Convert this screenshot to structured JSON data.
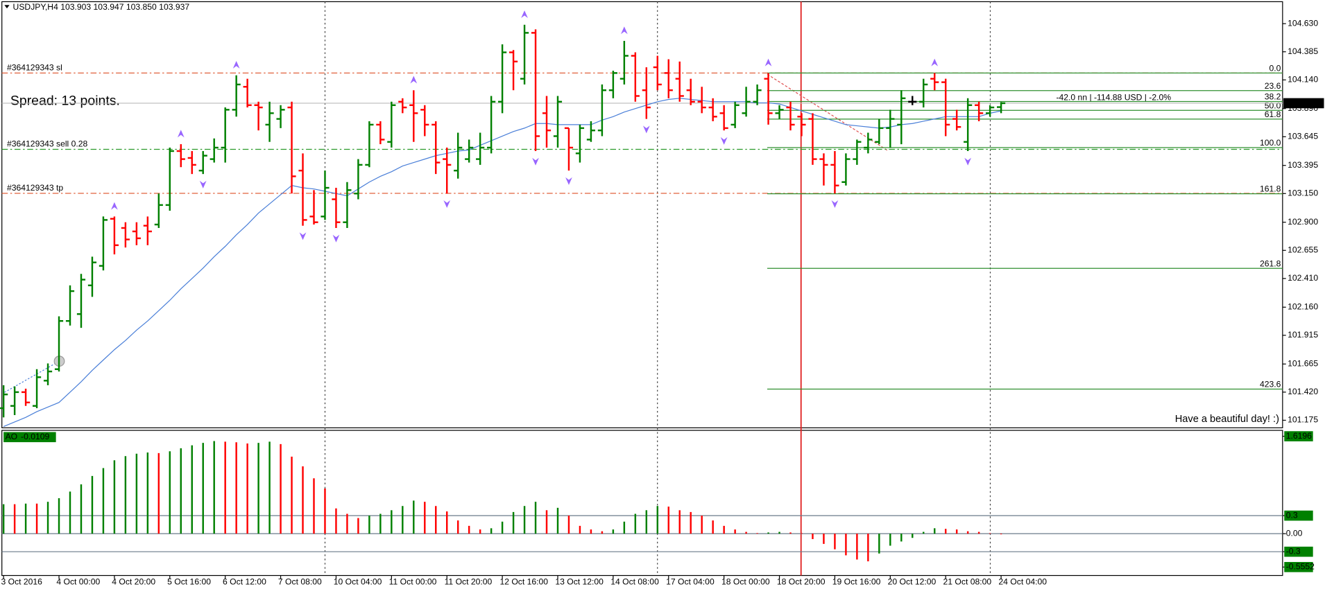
{
  "chart_data": {
    "type": "ohlc",
    "header": "USDJPY,H4  103.903 103.947 103.850 103.937",
    "spread_text": "Spread: 13 points.",
    "greeting": "Have a beautiful day! :)",
    "profit_text": "-42.0 nn | -114.88 USD | -2.0%",
    "up_color": "#008000",
    "down_color": "#ff0000",
    "doji_color": "#000000",
    "ylim": [
      101.109,
      104.814
    ],
    "yticks": [
      {
        "value": 104.63,
        "label": "104.630"
      },
      104.385,
      {
        "value": 104.14,
        "label": "104.140"
      },
      {
        "value": 103.89,
        "label": "103.890"
      },
      103.645,
      103.395,
      {
        "value": 103.15,
        "label": "103.150"
      },
      {
        "value": 102.9,
        "label": "102.900"
      },
      102.655,
      {
        "value": 102.41,
        "label": "102.410"
      },
      {
        "value": 102.16,
        "label": "102.160"
      },
      101.915,
      101.665,
      {
        "value": 101.42,
        "label": "101.420"
      },
      101.175
    ],
    "categories": [
      "3 Oct 2016",
      null,
      null,
      null,
      null,
      "4 Oct 00:00",
      null,
      null,
      null,
      null,
      "4 Oct 20:00",
      null,
      null,
      null,
      null,
      "5 Oct 16:00",
      null,
      null,
      null,
      null,
      "6 Oct 12:00",
      null,
      null,
      null,
      null,
      "7 Oct 08:00",
      null,
      null,
      null,
      null,
      "10 Oct 04:00",
      null,
      null,
      null,
      null,
      "11 Oct 00:00",
      null,
      null,
      null,
      null,
      "11 Oct 20:00",
      null,
      null,
      null,
      null,
      "12 Oct 16:00",
      null,
      null,
      null,
      null,
      "13 Oct 12:00",
      null,
      null,
      null,
      null,
      "14 Oct 08:00",
      null,
      null,
      null,
      null,
      "17 Oct 04:00",
      null,
      null,
      null,
      null,
      "18 Oct 00:00",
      null,
      null,
      null,
      null,
      "18 Oct 20:00",
      null,
      null,
      null,
      null,
      "19 Oct 16:00",
      null,
      null,
      null,
      null,
      "20 Oct 12:00",
      null,
      null,
      null,
      null,
      "21 Oct 08:00",
      null,
      null,
      null,
      null,
      "24 Oct 04:00"
    ],
    "ohlc": [
      [
        101.28,
        101.48,
        101.2,
        101.4
      ],
      [
        101.3,
        101.47,
        101.22,
        101.42
      ],
      [
        101.42,
        101.45,
        101.3,
        101.33
      ],
      [
        101.3,
        101.62,
        101.28,
        101.55
      ],
      [
        101.52,
        101.67,
        101.48,
        101.6
      ],
      [
        101.62,
        102.08,
        101.6,
        102.04
      ],
      [
        102.04,
        102.35,
        102.0,
        102.3
      ],
      [
        102.1,
        102.45,
        101.98,
        102.4
      ],
      [
        102.35,
        102.6,
        102.25,
        102.55
      ],
      [
        102.52,
        102.95,
        102.48,
        102.92
      ],
      [
        102.93,
        102.95,
        102.62,
        102.7
      ],
      [
        102.85,
        102.9,
        102.68,
        102.75
      ],
      [
        102.82,
        102.9,
        102.7,
        102.76
      ],
      [
        102.87,
        102.95,
        102.7,
        102.82
      ],
      [
        102.88,
        103.15,
        102.85,
        103.05
      ],
      [
        103.05,
        103.55,
        103.0,
        103.52
      ],
      [
        103.52,
        103.58,
        103.38,
        103.45
      ],
      [
        103.46,
        103.52,
        103.32,
        103.4
      ],
      [
        103.35,
        103.52,
        103.32,
        103.48
      ],
      [
        103.45,
        103.63,
        103.42,
        103.55
      ],
      [
        103.55,
        103.9,
        103.42,
        103.88
      ],
      [
        103.88,
        104.18,
        103.82,
        104.1
      ],
      [
        104.08,
        104.15,
        103.9,
        103.92
      ],
      [
        103.92,
        103.95,
        103.7,
        103.9
      ],
      [
        103.75,
        103.95,
        103.6,
        103.85
      ],
      [
        103.8,
        103.92,
        103.72,
        103.88
      ],
      [
        103.9,
        103.95,
        103.15,
        103.3
      ],
      [
        103.35,
        103.5,
        102.87,
        102.92
      ],
      [
        102.95,
        103.18,
        102.88,
        102.9
      ],
      [
        102.95,
        103.35,
        102.92,
        103.2
      ],
      [
        103.1,
        103.2,
        102.85,
        102.9
      ],
      [
        102.9,
        103.25,
        102.85,
        103.18
      ],
      [
        103.15,
        103.45,
        103.1,
        103.4
      ],
      [
        103.4,
        103.78,
        103.38,
        103.75
      ],
      [
        103.75,
        103.78,
        103.58,
        103.62
      ],
      [
        103.6,
        103.95,
        103.55,
        103.92
      ],
      [
        103.95,
        103.98,
        103.85,
        103.9
      ],
      [
        103.92,
        104.05,
        103.6,
        103.85
      ],
      [
        103.88,
        103.92,
        103.65,
        103.75
      ],
      [
        103.75,
        103.78,
        103.32,
        103.42
      ],
      [
        103.45,
        103.55,
        103.15,
        103.4
      ],
      [
        103.35,
        103.68,
        103.28,
        103.55
      ],
      [
        103.45,
        103.62,
        103.42,
        103.55
      ],
      [
        103.45,
        103.68,
        103.4,
        103.55
      ],
      [
        103.55,
        104.0,
        103.5,
        103.95
      ],
      [
        103.95,
        104.45,
        103.85,
        104.38
      ],
      [
        104.38,
        104.4,
        104.05,
        104.3
      ],
      [
        104.15,
        104.62,
        104.1,
        104.55
      ],
      [
        104.55,
        104.58,
        103.52,
        103.65
      ],
      [
        103.85,
        104.0,
        103.55,
        103.7
      ],
      [
        103.65,
        104.0,
        103.55,
        103.95
      ],
      [
        103.72,
        103.72,
        103.35,
        103.55
      ],
      [
        103.5,
        103.75,
        103.42,
        103.72
      ],
      [
        103.62,
        103.78,
        103.6,
        103.7
      ],
      [
        103.7,
        104.1,
        103.65,
        104.05
      ],
      [
        104.05,
        104.22,
        103.98,
        104.2
      ],
      [
        104.15,
        104.48,
        104.1,
        104.35
      ],
      [
        104.35,
        104.38,
        103.95,
        104.0
      ],
      [
        104.05,
        104.25,
        103.8,
        103.9
      ],
      [
        104.25,
        104.35,
        104.05,
        104.1
      ],
      [
        104.2,
        104.32,
        103.98,
        104.05
      ],
      [
        104.15,
        104.3,
        103.95,
        104.0
      ],
      [
        104.05,
        104.15,
        103.92,
        103.95
      ],
      [
        103.95,
        104.08,
        103.85,
        103.9
      ],
      [
        103.9,
        103.98,
        103.78,
        103.82
      ],
      [
        103.85,
        103.92,
        103.7,
        103.72
      ],
      [
        103.75,
        103.95,
        103.72,
        103.92
      ],
      [
        103.85,
        104.08,
        103.82,
        103.95
      ],
      [
        103.95,
        104.1,
        103.92,
        104.05
      ],
      [
        104.15,
        104.2,
        103.75,
        103.85
      ],
      [
        103.85,
        103.92,
        103.8,
        103.88
      ],
      [
        103.9,
        103.95,
        103.7,
        103.75
      ],
      [
        103.82,
        103.85,
        103.65,
        103.75
      ],
      [
        103.8,
        103.85,
        103.4,
        103.45
      ],
      [
        103.45,
        103.5,
        103.22,
        103.4
      ],
      [
        103.4,
        103.52,
        103.15,
        103.22
      ],
      [
        103.25,
        103.5,
        103.22,
        103.45
      ],
      [
        103.45,
        103.62,
        103.4,
        103.6
      ],
      [
        103.55,
        103.68,
        103.5,
        103.62
      ],
      [
        103.6,
        103.8,
        103.58,
        103.72
      ],
      [
        103.72,
        103.88,
        103.55,
        103.8
      ],
      [
        103.75,
        104.05,
        103.58,
        103.98
      ],
      [
        103.95,
        104.0,
        103.92,
        103.95
      ],
      [
        103.95,
        104.15,
        103.9,
        104.1
      ],
      [
        104.15,
        104.2,
        104.05,
        104.12
      ],
      [
        104.12,
        104.15,
        103.65,
        103.75
      ],
      [
        103.8,
        103.88,
        103.7,
        103.73
      ],
      [
        103.6,
        103.98,
        103.52,
        103.92
      ],
      [
        103.92,
        103.95,
        103.78,
        103.85
      ],
      [
        103.85,
        103.92,
        103.82,
        103.9
      ],
      [
        103.903,
        103.947,
        103.85,
        103.937
      ]
    ],
    "ma": {
      "color": "#4a7fd8",
      "values": [
        101.12,
        101.16,
        101.2,
        101.25,
        101.29,
        101.33,
        101.42,
        101.51,
        101.61,
        101.7,
        101.79,
        101.87,
        101.96,
        102.04,
        102.13,
        102.22,
        102.32,
        102.41,
        102.5,
        102.6,
        102.69,
        102.79,
        102.88,
        102.98,
        103.06,
        103.14,
        103.22,
        103.2,
        103.19,
        103.17,
        103.15,
        103.13,
        103.19,
        103.25,
        103.3,
        103.34,
        103.39,
        103.42,
        103.45,
        103.48,
        103.5,
        103.52,
        103.53,
        103.57,
        103.61,
        103.65,
        103.69,
        103.72,
        103.76,
        103.76,
        103.75,
        103.75,
        103.75,
        103.75,
        103.79,
        103.82,
        103.86,
        103.89,
        103.92,
        103.95,
        103.97,
        103.98,
        103.97,
        103.96,
        103.95,
        103.95,
        103.95,
        103.95,
        103.94,
        103.94,
        103.93,
        103.9,
        103.87,
        103.84,
        103.81,
        103.78,
        103.75,
        103.74,
        103.73,
        103.72,
        103.73,
        103.75,
        103.76,
        103.78,
        103.8,
        103.82,
        103.82,
        103.82,
        103.82,
        103.85,
        103.87
      ]
    },
    "fractal_color": "#9966ff",
    "fractals_up": [
      10,
      16,
      21,
      37,
      47,
      56,
      69,
      84
    ],
    "fractals_down": [
      18,
      27,
      30,
      40,
      48,
      51,
      58,
      65,
      75,
      87
    ],
    "orders": [
      {
        "label": "#364129343 sl",
        "price": 104.2,
        "color": "#e0603a"
      },
      {
        "label": "#364129343 sell 0.28",
        "price": 103.535,
        "color": "#2a9a2a"
      },
      {
        "label": "#364129343 tp",
        "price": 103.152,
        "color": "#e0603a"
      }
    ],
    "bid": 103.937,
    "fib": {
      "price_0": 104.2,
      "price_100": 103.55,
      "color": "#2f8f2f",
      "levels": [
        {
          "value": 0,
          "label": "0.0"
        },
        23.6,
        38.2,
        {
          "value": 50,
          "label": "50.0"
        },
        61.8,
        {
          "value": 100,
          "label": "100.0"
        },
        161.8,
        261.8,
        423.6
      ]
    },
    "ao": {
      "name": "AO",
      "ylim": [
        -0.5552,
        1.6196
      ],
      "yticks": [
        1.6196,
        0.3,
        {
          "value": 0,
          "label": "0.00"
        },
        -0.3,
        -0.5552
      ],
      "values": [
        0.49,
        0.49,
        0.5,
        0.5,
        0.53,
        0.59,
        0.7,
        0.82,
        0.96,
        1.09,
        1.22,
        1.29,
        1.33,
        1.35,
        1.34,
        1.37,
        1.42,
        1.47,
        1.51,
        1.54,
        1.53,
        1.52,
        1.5,
        1.51,
        1.53,
        1.49,
        1.28,
        1.12,
        0.92,
        0.75,
        0.42,
        0.33,
        0.26,
        0.3,
        0.33,
        0.39,
        0.46,
        0.55,
        0.53,
        0.46,
        0.37,
        0.22,
        0.13,
        0.07,
        0.09,
        0.2,
        0.36,
        0.46,
        0.53,
        0.39,
        0.43,
        0.3,
        0.13,
        0.07,
        0.04,
        0.07,
        0.2,
        0.33,
        0.39,
        0.46,
        0.45,
        0.39,
        0.36,
        0.3,
        0.22,
        0.13,
        0.07,
        0.03,
        0.01,
        0.02,
        0.03,
        0.02,
        0.01,
        -0.09,
        -0.17,
        -0.26,
        -0.36,
        -0.43,
        -0.46,
        -0.33,
        -0.2,
        -0.13,
        -0.07,
        0.03,
        0.09,
        0.08,
        0.07,
        0.04,
        0.03,
        0.01,
        -0.0109
      ]
    }
  }
}
